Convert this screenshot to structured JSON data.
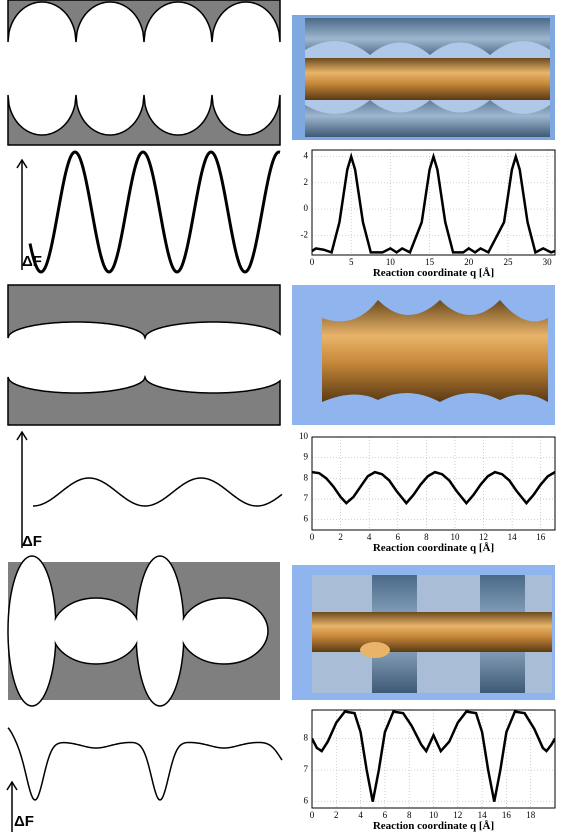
{
  "chart_data": [
    {
      "type": "line",
      "xlabel": "Reaction coordinate q [Å]",
      "color": "#000000",
      "grid": true,
      "x": [
        0,
        0.5,
        1.5,
        2.5,
        3.5,
        4.5,
        5,
        5.5,
        6.5,
        7.5,
        9,
        10,
        10.8,
        11.5,
        12.5,
        14,
        15,
        15.5,
        16,
        17,
        18,
        19.3,
        20,
        20.8,
        21.5,
        22.5,
        24.5,
        25.5,
        26,
        26.5,
        27.5,
        28.5,
        29.5,
        30.5,
        31
      ],
      "values": [
        -3.2,
        -3,
        -3.1,
        -3.3,
        -1,
        3,
        4,
        3,
        -1,
        -3.3,
        -3.3,
        -3,
        -3.3,
        -3,
        -3.3,
        -1,
        3,
        4,
        3,
        -1,
        -3.3,
        -3.3,
        -3,
        -3.3,
        -3,
        -3.3,
        -1,
        3,
        4,
        3,
        -1,
        -3.3,
        -3,
        -3.3,
        -3.2
      ],
      "xlim": [
        0,
        31
      ],
      "xticks": [
        0,
        5,
        10,
        15,
        20,
        25,
        30
      ],
      "ylim": [
        -3.5,
        4.5
      ],
      "yticks": [
        -2,
        0,
        2,
        4
      ]
    },
    {
      "type": "line",
      "xlabel": "Reaction coordinate q [Å]",
      "color": "#000000",
      "grid": true,
      "x": [
        0,
        0.5,
        1,
        1.5,
        2,
        2.4,
        2.9,
        3.4,
        3.9,
        4.4,
        4.9,
        5.4,
        5.9,
        6.6,
        7.1,
        7.6,
        8.1,
        8.6,
        9.1,
        9.6,
        10.1,
        10.8,
        11.3,
        11.8,
        12.3,
        12.8,
        13.3,
        13.8,
        14.3,
        15,
        15.5,
        16,
        16.5,
        17
      ],
      "values": [
        8.3,
        8.25,
        8.0,
        7.6,
        7.1,
        6.8,
        7.1,
        7.6,
        8.1,
        8.3,
        8.2,
        7.9,
        7.4,
        6.8,
        7.2,
        7.7,
        8.1,
        8.3,
        8.2,
        7.9,
        7.4,
        6.8,
        7.2,
        7.7,
        8.1,
        8.3,
        8.2,
        7.9,
        7.4,
        6.8,
        7.2,
        7.7,
        8.1,
        8.3
      ],
      "xlim": [
        0,
        17
      ],
      "xticks": [
        0,
        2,
        4,
        6,
        8,
        10,
        12,
        14,
        16
      ],
      "ylim": [
        5.5,
        10
      ],
      "yticks": [
        6,
        7,
        8,
        9,
        10
      ]
    },
    {
      "type": "line",
      "xlabel": "Reaction coordinate q [Å]",
      "color": "#000000",
      "grid": true,
      "x": [
        0,
        0.4,
        0.8,
        1.3,
        2,
        2.7,
        3.5,
        4,
        4.5,
        5,
        5.5,
        6,
        6.7,
        7.5,
        8.2,
        9,
        9.4,
        10,
        10.6,
        11.3,
        12,
        12.7,
        13.5,
        14,
        14.5,
        15,
        15.5,
        16,
        16.7,
        17.5,
        18.3,
        19,
        19.3,
        19.7,
        20
      ],
      "values": [
        8,
        7.7,
        7.6,
        7.9,
        8.5,
        8.85,
        8.8,
        8.2,
        7,
        6,
        7,
        8.2,
        8.85,
        8.8,
        8.4,
        7.8,
        7.6,
        8.1,
        7.6,
        7.9,
        8.5,
        8.85,
        8.8,
        8.2,
        7,
        6,
        7,
        8.2,
        8.85,
        8.8,
        8.3,
        7.7,
        7.6,
        7.8,
        8
      ],
      "xlim": [
        0,
        20
      ],
      "xticks": [
        0,
        2,
        4,
        6,
        8,
        10,
        12,
        14,
        16,
        18
      ],
      "ylim": [
        5.8,
        8.9
      ],
      "yticks": [
        6,
        7,
        8
      ]
    }
  ],
  "schematic_labels": [
    "ΔF",
    "ΔF",
    "ΔF"
  ]
}
